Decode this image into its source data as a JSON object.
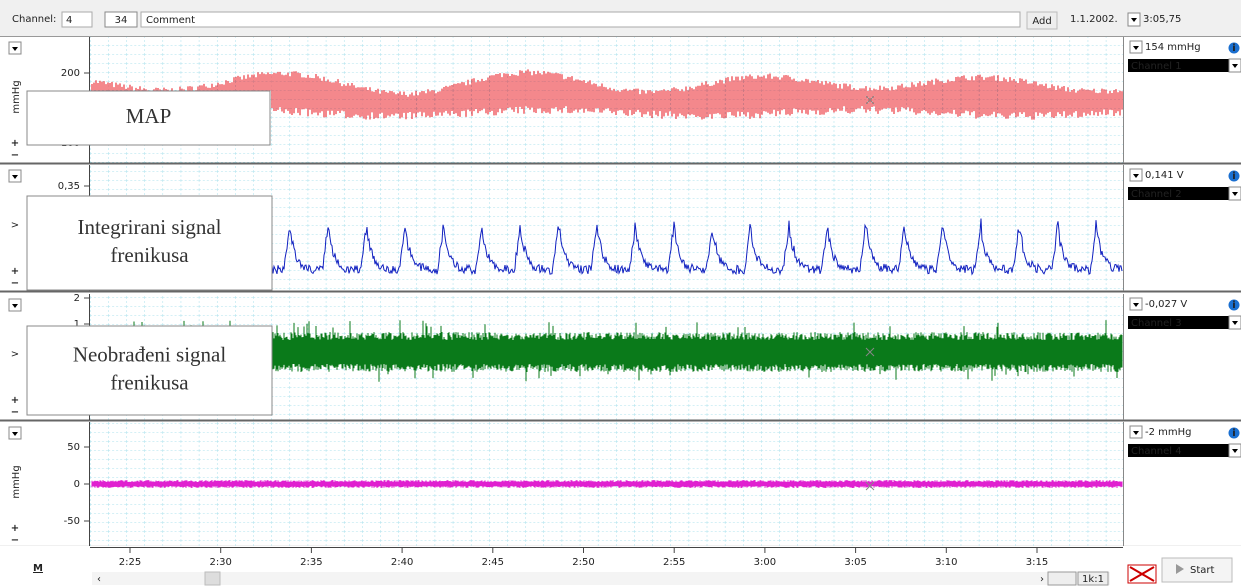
{
  "toolbar": {
    "channel_label": "Channel:",
    "channel_value": "4",
    "page": "34",
    "comment": "Comment",
    "add": "Add",
    "date": "1.1.2002.",
    "time": "3:05,75"
  },
  "channels": [
    {
      "unit": "mmHg",
      "ticks": [
        "200",
        "100"
      ],
      "readout": "154 mmHg",
      "name": "Channel 1",
      "overlay": [
        "MAP"
      ]
    },
    {
      "ticks": [
        "0,35"
      ],
      "readout": "0,141 V",
      "name": "Channel 2",
      "overlay": [
        "Integrirani signal",
        "frenikusa"
      ]
    },
    {
      "ticks": [
        "2",
        "1"
      ],
      "readout": "-0,027 V",
      "name": "Channel 3",
      "overlay": [
        "Neobrađeni signal",
        "frenikusa"
      ]
    },
    {
      "unit": "mmHg",
      "ticks": [
        "50",
        "0",
        "-50"
      ],
      "readout": "-2 mmHg",
      "name": "Channel 4"
    }
  ],
  "time_axis": {
    "ticks": [
      "2:25",
      "2:30",
      "2:35",
      "2:40",
      "2:45",
      "2:50",
      "2:55",
      "3:00",
      "3:05",
      "3:10",
      "3:15"
    ]
  },
  "footer": {
    "marker": "M",
    "ratio": "1k:1",
    "start": "Start"
  }
}
